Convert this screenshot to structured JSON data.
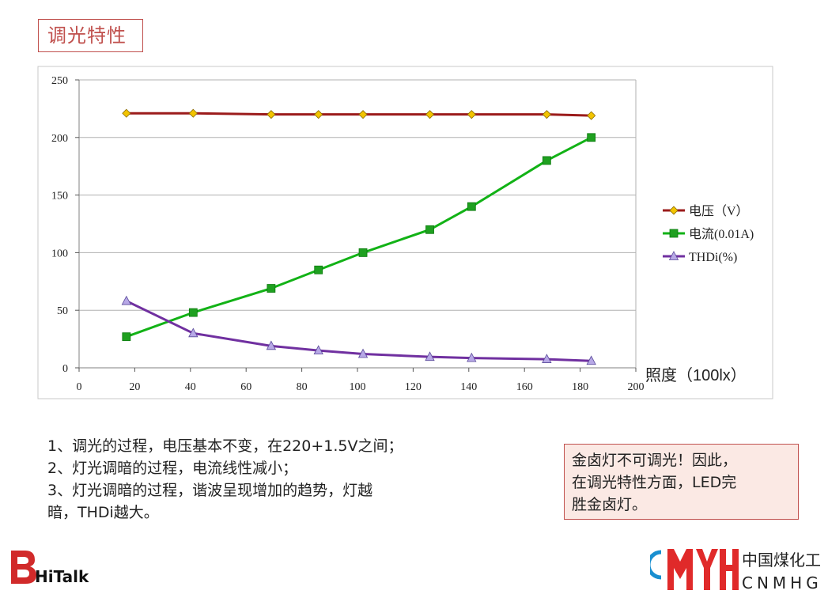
{
  "page_title": "调光特性",
  "chart_data": {
    "type": "line",
    "xlabel": "照度（100lx）",
    "ylabel": "",
    "xlim": [
      0,
      200
    ],
    "ylim": [
      0,
      250
    ],
    "x_ticks": [
      "0",
      "20",
      "40",
      "60",
      "80",
      "100",
      "120",
      "140",
      "160",
      "180",
      "200"
    ],
    "y_ticks": [
      "0",
      "50",
      "100",
      "150",
      "200",
      "250"
    ],
    "grid": "horizontal",
    "legend_position": "right",
    "x": [
      17,
      41,
      69,
      86,
      102,
      126,
      141,
      168,
      184
    ],
    "series": [
      {
        "name": "电压（V）",
        "color": "#9b1b1b",
        "marker": "diamond",
        "marker_color": "#f2c400",
        "values": [
          221,
          221,
          220,
          220,
          220,
          220,
          220,
          220,
          219
        ]
      },
      {
        "name": "电流(0.01A)",
        "color": "#12b216",
        "marker": "square",
        "marker_color": "#1fa020",
        "values": [
          27,
          48,
          69,
          85,
          100,
          120,
          140,
          180,
          200
        ]
      },
      {
        "name": "THDi(%)",
        "color": "#7030a0",
        "marker": "triangle",
        "marker_color": "#b7a8e6",
        "values": [
          58,
          30,
          19,
          15,
          12,
          9.5,
          8.5,
          7.5,
          6
        ]
      }
    ]
  },
  "notes": [
    "1、调光的过程，电压基本不变，在220+1.5V之间；",
    "2、灯光调暗的过程，电流线性减小；",
    "3、灯光调暗的过程，谐波呈现增加的趋势，灯越",
    "暗，THDi越大。"
  ],
  "callout": [
    "金卤灯不可调光！因此，",
    "在调光特性方面，LED完",
    "胜金卤灯。"
  ],
  "logo_left_text": "HiTalk",
  "logo_right": {
    "cn": "中国煤化工",
    "en": "CNMHG"
  }
}
